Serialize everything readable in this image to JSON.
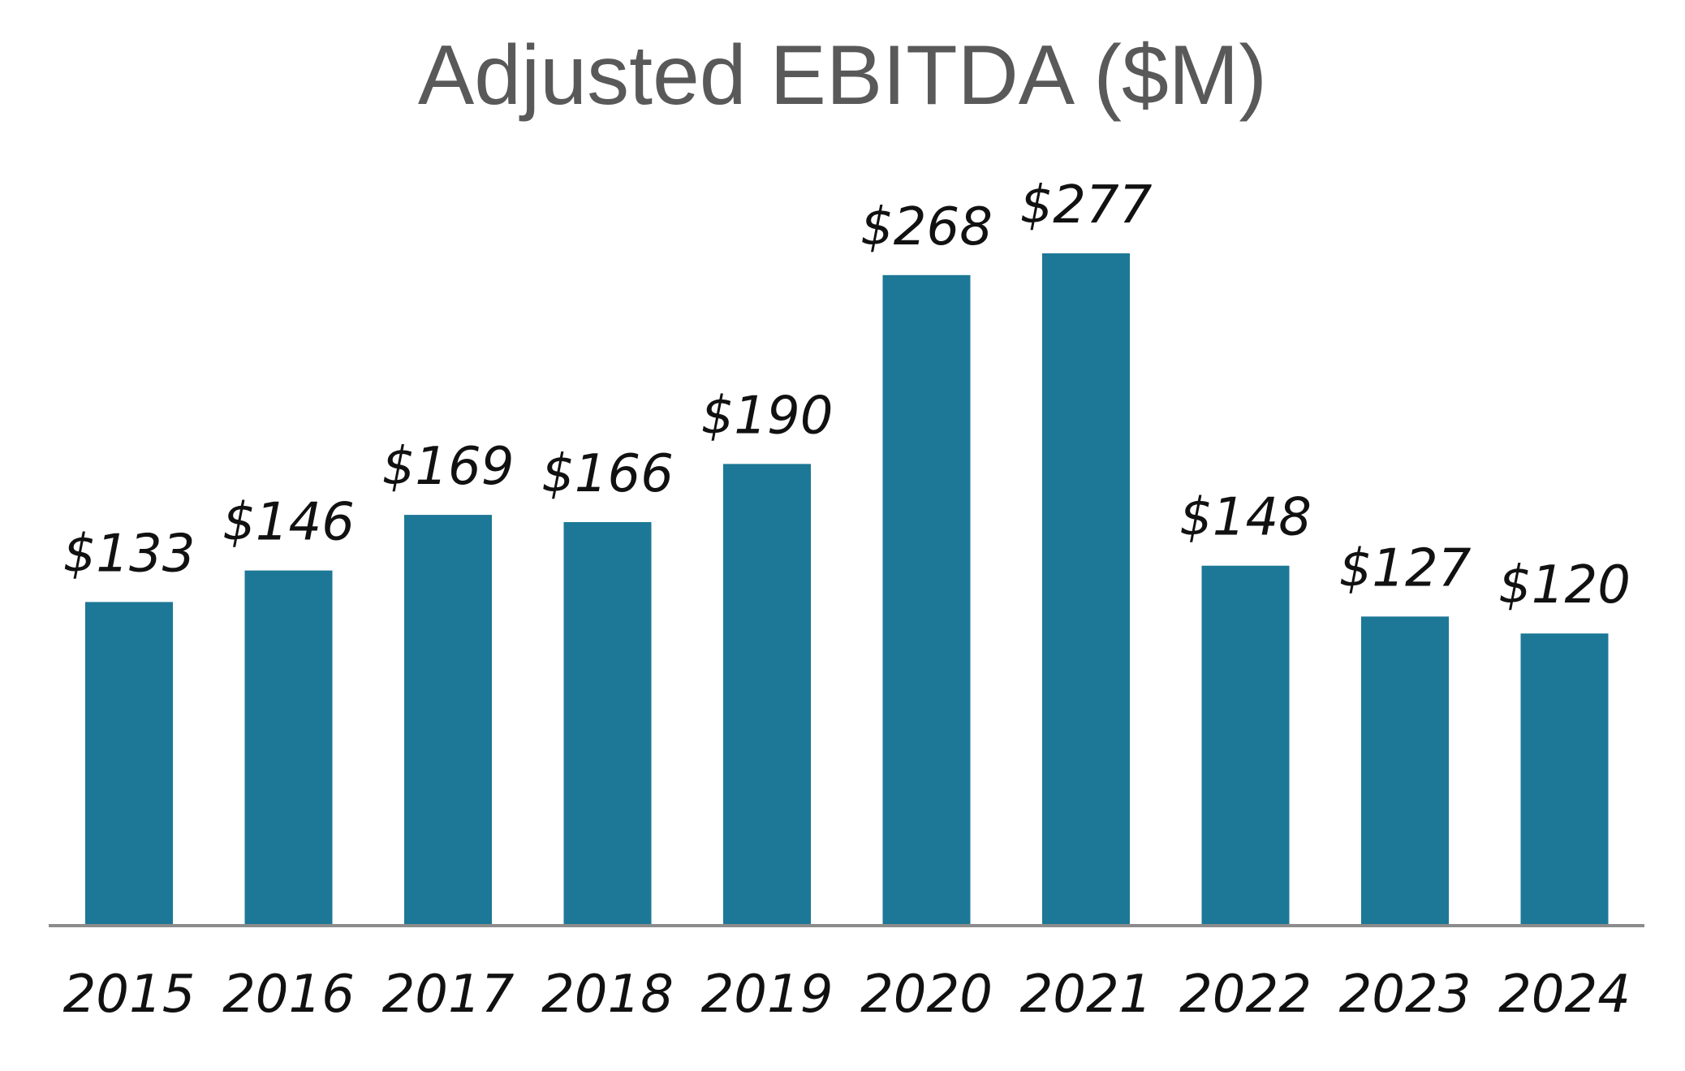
{
  "chart_data": {
    "type": "bar",
    "title": "Adjusted EBITDA ($M)",
    "xlabel": "",
    "ylabel": "",
    "categories": [
      "2015",
      "2016",
      "2017",
      "2018",
      "2019",
      "2020",
      "2021",
      "2022",
      "2023",
      "2024"
    ],
    "values": [
      133,
      146,
      169,
      166,
      190,
      268,
      277,
      148,
      127,
      120
    ],
    "data_labels": [
      "$133",
      "$146",
      "$169",
      "$166",
      "$190",
      "$268",
      "$277",
      "$148",
      "$127",
      "$120"
    ],
    "ylim": [
      0,
      277
    ],
    "grid": false,
    "legend": "none",
    "bar_color": "#1c7896",
    "axis_color": "#8c8c8c"
  }
}
